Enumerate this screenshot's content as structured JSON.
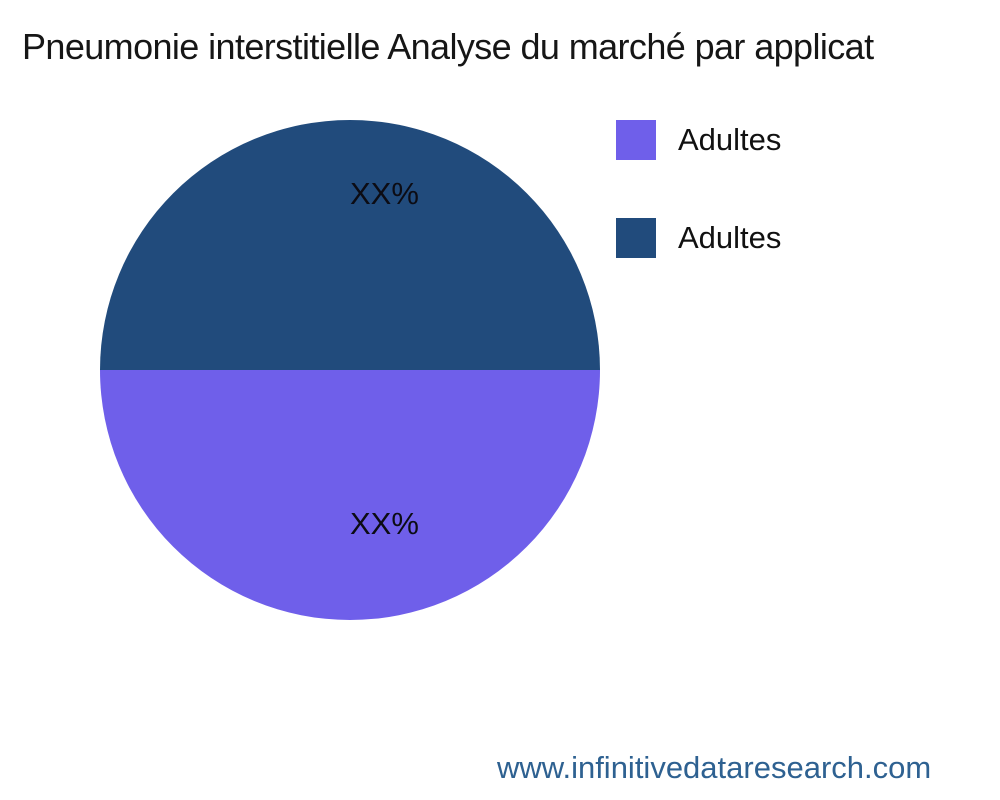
{
  "background": "#ffffff",
  "footer": {
    "url": "www.infinitivedataresearch.com",
    "color": "#2E6191"
  },
  "chart_data": {
    "type": "pie",
    "title": "Pneumonie interstitielle Analyse du marché par applicat",
    "slices": [
      {
        "position": "top",
        "legend_label": "Adultes",
        "value_label": "XX%",
        "value_pct": 50,
        "color": "#214B7C"
      },
      {
        "position": "bottom",
        "legend_label": "Adultes",
        "value_label": "XX%",
        "value_pct": 50,
        "color": "#6F5FEA"
      }
    ],
    "legend": {
      "position": "top-right",
      "items": [
        {
          "label": "Adultes",
          "color": "#6F5FEA"
        },
        {
          "label": "Adultes",
          "color": "#214B7C"
        }
      ]
    },
    "text_color": "#0c0c14"
  }
}
